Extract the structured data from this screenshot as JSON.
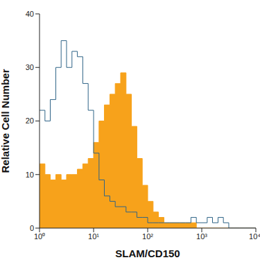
{
  "chart_data": {
    "type": "histogram",
    "x_label": "SLAM/CD150",
    "y_label": "Relative Cell Number",
    "log": "x",
    "grid": false,
    "bins": [
      1,
      1.26,
      1.58,
      2,
      2.51,
      3.16,
      3.98,
      5.01,
      6.31,
      7.94,
      10,
      12.6,
      15.8,
      20,
      25.1,
      31.6,
      39.8,
      50.1,
      63.1,
      79.4,
      100,
      126,
      158,
      200,
      251,
      316,
      398,
      501,
      631,
      794,
      1000,
      1260,
      1580,
      2000,
      2510,
      3160,
      3980,
      5010,
      6310,
      7940,
      10000
    ],
    "series": [
      {
        "type": "area",
        "color": "#f7a21b",
        "values": [
          12,
          10,
          9,
          10,
          9,
          10,
          10,
          11,
          12,
          13,
          16,
          20,
          23,
          25,
          27,
          29,
          25,
          19,
          13,
          8,
          5,
          3,
          2,
          1,
          1,
          1,
          1,
          1,
          1,
          0,
          0,
          0,
          0,
          0,
          0,
          0,
          0,
          0,
          0,
          0
        ]
      },
      {
        "type": "line",
        "color": "#2f6487",
        "values": [
          22,
          20,
          24,
          30,
          35,
          30,
          33,
          32,
          27,
          22,
          14,
          9,
          6,
          5,
          4,
          4,
          3,
          3,
          2,
          2,
          1,
          1,
          1,
          1,
          1,
          1,
          1,
          1,
          2,
          1,
          1,
          2,
          1,
          2,
          1,
          0,
          0,
          0,
          0,
          0
        ]
      }
    ],
    "xlim": [
      1,
      10000
    ],
    "xticks": [
      {
        "value": 1,
        "label": "10⁰"
      },
      {
        "value": 10,
        "label": "10¹"
      },
      {
        "value": 100,
        "label": "10²"
      },
      {
        "value": 1000,
        "label": "10³"
      },
      {
        "value": 10000,
        "label": "10⁴"
      }
    ],
    "ylim": [
      0,
      40
    ],
    "yticks": [
      0,
      10,
      20,
      30,
      40
    ]
  }
}
